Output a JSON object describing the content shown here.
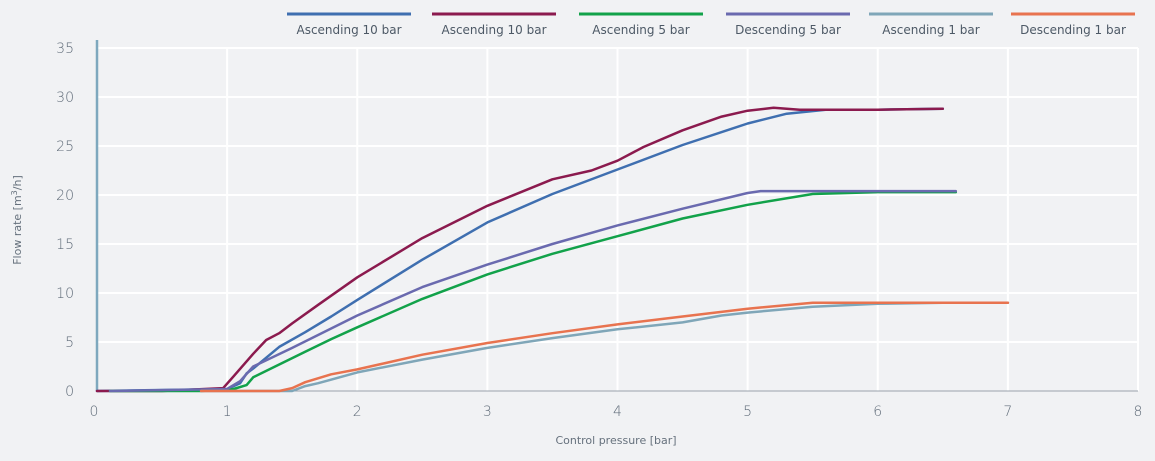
{
  "chart_data": {
    "type": "line",
    "xlabel": "Control pressure [bar]",
    "ylabel": "Flow rate [m³/h]",
    "ylabel_parts": {
      "before": "Flow rate [m",
      "sup": "3",
      "after": "/h]"
    },
    "xlim": [
      0,
      8
    ],
    "ylim": [
      0,
      35
    ],
    "xticks": [
      0,
      1,
      2,
      3,
      4,
      5,
      6,
      7,
      8
    ],
    "yticks": [
      0,
      5,
      10,
      15,
      20,
      25,
      30,
      35
    ],
    "grid": true,
    "legend_position": "top-right",
    "series": [
      {
        "name": "Ascending 10 bar",
        "color": "#3f6fb0",
        "points": [
          [
            0,
            0
          ],
          [
            0.5,
            0.1
          ],
          [
            1.0,
            0.2
          ],
          [
            1.1,
            0.8
          ],
          [
            1.15,
            1.8
          ],
          [
            1.2,
            2.3
          ],
          [
            1.4,
            4.5
          ],
          [
            1.6,
            6.0
          ],
          [
            1.8,
            7.6
          ],
          [
            2.0,
            9.3
          ],
          [
            2.5,
            13.4
          ],
          [
            3.0,
            17.2
          ],
          [
            3.5,
            20.1
          ],
          [
            4.0,
            22.6
          ],
          [
            4.5,
            25.1
          ],
          [
            5.0,
            27.3
          ],
          [
            5.3,
            28.3
          ],
          [
            5.6,
            28.7
          ],
          [
            6.0,
            28.7
          ],
          [
            6.5,
            28.8
          ]
        ]
      },
      {
        "name": "Ascending 10 bar",
        "color": "#8b1a4e",
        "points": [
          [
            0,
            0
          ],
          [
            0.5,
            0
          ],
          [
            0.97,
            0.3
          ],
          [
            1.05,
            1.5
          ],
          [
            1.2,
            3.8
          ],
          [
            1.3,
            5.2
          ],
          [
            1.4,
            5.9
          ],
          [
            1.5,
            6.9
          ],
          [
            1.7,
            8.8
          ],
          [
            2.0,
            11.6
          ],
          [
            2.5,
            15.6
          ],
          [
            3.0,
            18.9
          ],
          [
            3.5,
            21.6
          ],
          [
            3.8,
            22.5
          ],
          [
            4.0,
            23.5
          ],
          [
            4.2,
            24.9
          ],
          [
            4.5,
            26.6
          ],
          [
            4.8,
            28.0
          ],
          [
            5.0,
            28.6
          ],
          [
            5.2,
            28.9
          ],
          [
            5.4,
            28.7
          ],
          [
            6.0,
            28.7
          ],
          [
            6.5,
            28.8
          ]
        ]
      },
      {
        "name": "Ascending 5 bar",
        "color": "#12a24a",
        "points": [
          [
            0.1,
            0
          ],
          [
            0.8,
            0
          ],
          [
            1.05,
            0.2
          ],
          [
            1.15,
            0.6
          ],
          [
            1.2,
            1.4
          ],
          [
            1.4,
            2.7
          ],
          [
            1.6,
            4.0
          ],
          [
            1.8,
            5.3
          ],
          [
            2.0,
            6.5
          ],
          [
            2.5,
            9.4
          ],
          [
            3.0,
            11.9
          ],
          [
            3.5,
            14.0
          ],
          [
            4.0,
            15.8
          ],
          [
            4.5,
            17.6
          ],
          [
            5.0,
            19.0
          ],
          [
            5.5,
            20.1
          ],
          [
            6.0,
            20.3
          ],
          [
            6.6,
            20.3
          ]
        ]
      },
      {
        "name": "Descending 5 bar",
        "color": "#6a6aaf",
        "points": [
          [
            0.1,
            0
          ],
          [
            1.0,
            0.2
          ],
          [
            1.1,
            1.0
          ],
          [
            1.2,
            2.5
          ],
          [
            1.5,
            4.4
          ],
          [
            2.0,
            7.7
          ],
          [
            2.5,
            10.6
          ],
          [
            3.0,
            12.9
          ],
          [
            3.5,
            15.0
          ],
          [
            4.0,
            16.9
          ],
          [
            4.5,
            18.6
          ],
          [
            5.0,
            20.2
          ],
          [
            5.1,
            20.4
          ],
          [
            5.5,
            20.4
          ],
          [
            6.6,
            20.4
          ]
        ]
      },
      {
        "name": "Ascending 1 bar",
        "color": "#7fa6b8",
        "points": [
          [
            0.8,
            0
          ],
          [
            1.5,
            0
          ],
          [
            1.6,
            0.5
          ],
          [
            1.7,
            0.8
          ],
          [
            2.0,
            1.9
          ],
          [
            2.5,
            3.2
          ],
          [
            3.0,
            4.4
          ],
          [
            3.5,
            5.4
          ],
          [
            4.0,
            6.3
          ],
          [
            4.5,
            7.0
          ],
          [
            4.8,
            7.7
          ],
          [
            5.0,
            8.0
          ],
          [
            5.5,
            8.6
          ],
          [
            6.0,
            8.9
          ],
          [
            6.5,
            9.0
          ],
          [
            7.0,
            9.0
          ]
        ]
      },
      {
        "name": "Descending 1 bar",
        "color": "#e8734f",
        "points": [
          [
            0.8,
            0
          ],
          [
            1.4,
            0
          ],
          [
            1.5,
            0.3
          ],
          [
            1.6,
            0.9
          ],
          [
            1.8,
            1.7
          ],
          [
            2.0,
            2.2
          ],
          [
            2.5,
            3.7
          ],
          [
            3.0,
            4.9
          ],
          [
            3.5,
            5.9
          ],
          [
            4.0,
            6.8
          ],
          [
            4.5,
            7.6
          ],
          [
            5.0,
            8.4
          ],
          [
            5.5,
            9.0
          ],
          [
            6.0,
            9.0
          ],
          [
            7.0,
            9.0
          ]
        ]
      }
    ]
  }
}
